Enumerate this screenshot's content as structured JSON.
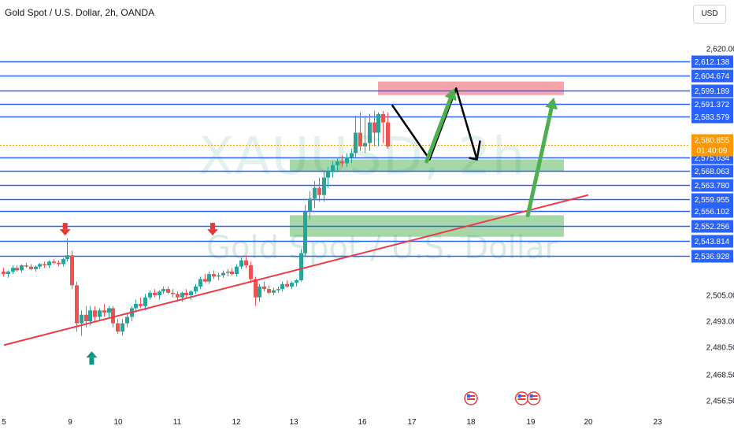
{
  "header": {
    "title": "Gold Spot / U.S. Dollar, 2h, OANDA",
    "currency_button": "USD"
  },
  "watermark": {
    "symbol": "XAUUSD, 2h",
    "description": "Gold Spot / U.S. Dollar"
  },
  "colors": {
    "up_candle": "#26a69a",
    "down_candle": "#ef5350",
    "level_line": "#2962ff",
    "trendline": "#f23645",
    "current_price_badge": "#ff9800",
    "label_badge": "#2962ff",
    "zone_green": "rgba(76,175,80,0.5)",
    "zone_red": "rgba(242,54,69,0.45)",
    "arrow_green": "#4caf50",
    "arrow_down_marker": "#e53935",
    "arrow_up_marker": "#089981"
  },
  "chart_data": {
    "type": "candlestick",
    "symbol": "XAUUSD",
    "timeframe": "2h",
    "x_ticks": [
      "5",
      "9",
      "10",
      "11",
      "12",
      "13",
      "16",
      "17",
      "18",
      "19",
      "20",
      "23"
    ],
    "y_ticks": [
      "2,620.000",
      "2,456.500",
      "2,468.500",
      "2,480.500",
      "2,493.000",
      "2,505.000"
    ],
    "current_price": "2,580.855",
    "countdown": "01:40:09",
    "horizontal_levels": [
      "2,612.138",
      "2,604.674",
      "2,599.189",
      "2,591.372",
      "2,583.579",
      "2,575.034",
      "2,568.063",
      "2,563.780",
      "2,559.955",
      "2,556.102",
      "2,552.256",
      "2,543.814",
      "2,536.928"
    ],
    "zones": [
      {
        "type": "resistance",
        "color": "red",
        "from": 2596.5,
        "to": 2602.5
      },
      {
        "type": "support",
        "color": "green",
        "from": 2568,
        "to": 2574
      },
      {
        "type": "support",
        "color": "green",
        "from": 2546,
        "to": 2555
      }
    ],
    "trendline": {
      "from": {
        "x": 5,
        "y": 2481.5
      },
      "to": {
        "x": 20,
        "y": 2561
      }
    },
    "candles_ohlc": [
      [
        2524,
        2527,
        2520,
        2522
      ],
      [
        2522,
        2525,
        2519,
        2524
      ],
      [
        2524,
        2529,
        2522,
        2527
      ],
      [
        2527,
        2529,
        2524,
        2525
      ],
      [
        2525,
        2530,
        2523,
        2529
      ],
      [
        2529,
        2531,
        2527,
        2528
      ],
      [
        2528,
        2530,
        2525,
        2526
      ],
      [
        2526,
        2529,
        2524,
        2528
      ],
      [
        2528,
        2531,
        2526,
        2530
      ],
      [
        2530,
        2532,
        2527,
        2529
      ],
      [
        2529,
        2533,
        2527,
        2532
      ],
      [
        2532,
        2534,
        2530,
        2531
      ],
      [
        2531,
        2533,
        2528,
        2530
      ],
      [
        2530,
        2535,
        2528,
        2534
      ],
      [
        2534,
        2545,
        2532,
        2537
      ],
      [
        2537,
        2539,
        2510,
        2513
      ],
      [
        2513,
        2516,
        2488,
        2492
      ],
      [
        2492,
        2498,
        2486,
        2496
      ],
      [
        2496,
        2500,
        2490,
        2493
      ],
      [
        2493,
        2500,
        2491,
        2498
      ],
      [
        2498,
        2500,
        2493,
        2495
      ],
      [
        2495,
        2499,
        2493,
        2498
      ],
      [
        2498,
        2501,
        2495,
        2497
      ],
      [
        2497,
        2500,
        2494,
        2499
      ],
      [
        2499,
        2500,
        2490,
        2492
      ],
      [
        2492,
        2494,
        2487,
        2488
      ],
      [
        2488,
        2494,
        2486,
        2492
      ],
      [
        2492,
        2497,
        2490,
        2495
      ],
      [
        2495,
        2500,
        2493,
        2499
      ],
      [
        2499,
        2503,
        2497,
        2501
      ],
      [
        2501,
        2504,
        2499,
        2500
      ],
      [
        2500,
        2506,
        2498,
        2504
      ],
      [
        2504,
        2509,
        2503,
        2507
      ],
      [
        2507,
        2510,
        2504,
        2505
      ],
      [
        2505,
        2509,
        2503,
        2508
      ],
      [
        2508,
        2512,
        2506,
        2510
      ],
      [
        2510,
        2512,
        2506,
        2507
      ],
      [
        2507,
        2510,
        2504,
        2506
      ],
      [
        2506,
        2508,
        2502,
        2504
      ],
      [
        2504,
        2508,
        2502,
        2507
      ],
      [
        2507,
        2510,
        2504,
        2505
      ],
      [
        2505,
        2509,
        2503,
        2508
      ],
      [
        2508,
        2514,
        2506,
        2512
      ],
      [
        2512,
        2520,
        2510,
        2518
      ],
      [
        2518,
        2522,
        2515,
        2516
      ],
      [
        2516,
        2524,
        2514,
        2522
      ],
      [
        2522,
        2525,
        2518,
        2520
      ],
      [
        2520,
        2523,
        2517,
        2521
      ],
      [
        2521,
        2525,
        2519,
        2523
      ],
      [
        2523,
        2526,
        2520,
        2524
      ],
      [
        2524,
        2527,
        2521,
        2522
      ],
      [
        2522,
        2530,
        2520,
        2528
      ],
      [
        2528,
        2535,
        2526,
        2533
      ],
      [
        2533,
        2537,
        2527,
        2529
      ],
      [
        2529,
        2532,
        2515,
        2518
      ],
      [
        2518,
        2520,
        2500,
        2504
      ],
      [
        2504,
        2514,
        2502,
        2512
      ],
      [
        2512,
        2516,
        2508,
        2510
      ],
      [
        2510,
        2513,
        2506,
        2507
      ],
      [
        2507,
        2511,
        2505,
        2509
      ],
      [
        2509,
        2512,
        2507,
        2510
      ],
      [
        2510,
        2516,
        2508,
        2514
      ],
      [
        2514,
        2517,
        2511,
        2512
      ],
      [
        2512,
        2516,
        2510,
        2515
      ],
      [
        2515,
        2518,
        2512,
        2517
      ],
      [
        2517,
        2540,
        2516,
        2538
      ],
      [
        2538,
        2558,
        2536,
        2556
      ],
      [
        2556,
        2562,
        2554,
        2560
      ],
      [
        2560,
        2565,
        2557,
        2563
      ],
      [
        2563,
        2566,
        2559,
        2561
      ],
      [
        2561,
        2568,
        2559,
        2566
      ],
      [
        2566,
        2570,
        2563,
        2568
      ],
      [
        2568,
        2573,
        2566,
        2571
      ],
      [
        2571,
        2575,
        2568,
        2573
      ],
      [
        2573,
        2576,
        2570,
        2572
      ],
      [
        2572,
        2577,
        2570,
        2575
      ],
      [
        2575,
        2579,
        2572,
        2577
      ],
      [
        2577,
        2584,
        2575,
        2582
      ],
      [
        2582,
        2586,
        2578,
        2580
      ],
      [
        2580,
        2584,
        2577,
        2581
      ],
      [
        2581,
        2585,
        2578,
        2583
      ],
      [
        2583,
        2587,
        2580,
        2582
      ],
      [
        2582,
        2586,
        2580,
        2585
      ],
      [
        2585,
        2587,
        2581,
        2583
      ],
      [
        2583,
        2586,
        2579,
        2580
      ]
    ],
    "scenario_path": [
      {
        "x": 16.6,
        "y": 2590.5
      },
      {
        "x": 17.3,
        "y": 2574
      },
      {
        "x": 17.75,
        "y": 2600
      },
      {
        "x": 18.1,
        "y": 2574
      }
    ],
    "projection_arrows": [
      {
        "from": {
          "x": 17.25,
          "y": 2573
        },
        "to": {
          "x": 17.72,
          "y": 2600
        }
      },
      {
        "from": {
          "x": 18.95,
          "y": 2555
        },
        "to": {
          "x": 19.4,
          "y": 2595
        }
      }
    ],
    "markers": [
      {
        "kind": "down-arrow",
        "x": 8.7,
        "y": 2549
      },
      {
        "kind": "down-arrow",
        "x": 11.6,
        "y": 2549
      },
      {
        "kind": "up-arrow",
        "x": 9.45,
        "y": 2477
      }
    ],
    "events": [
      {
        "x": 18.0,
        "label": "US"
      },
      {
        "x": 18.85,
        "label": "US"
      },
      {
        "x": 19.05,
        "label": "US"
      }
    ],
    "grid": false,
    "price_scale": "right"
  }
}
